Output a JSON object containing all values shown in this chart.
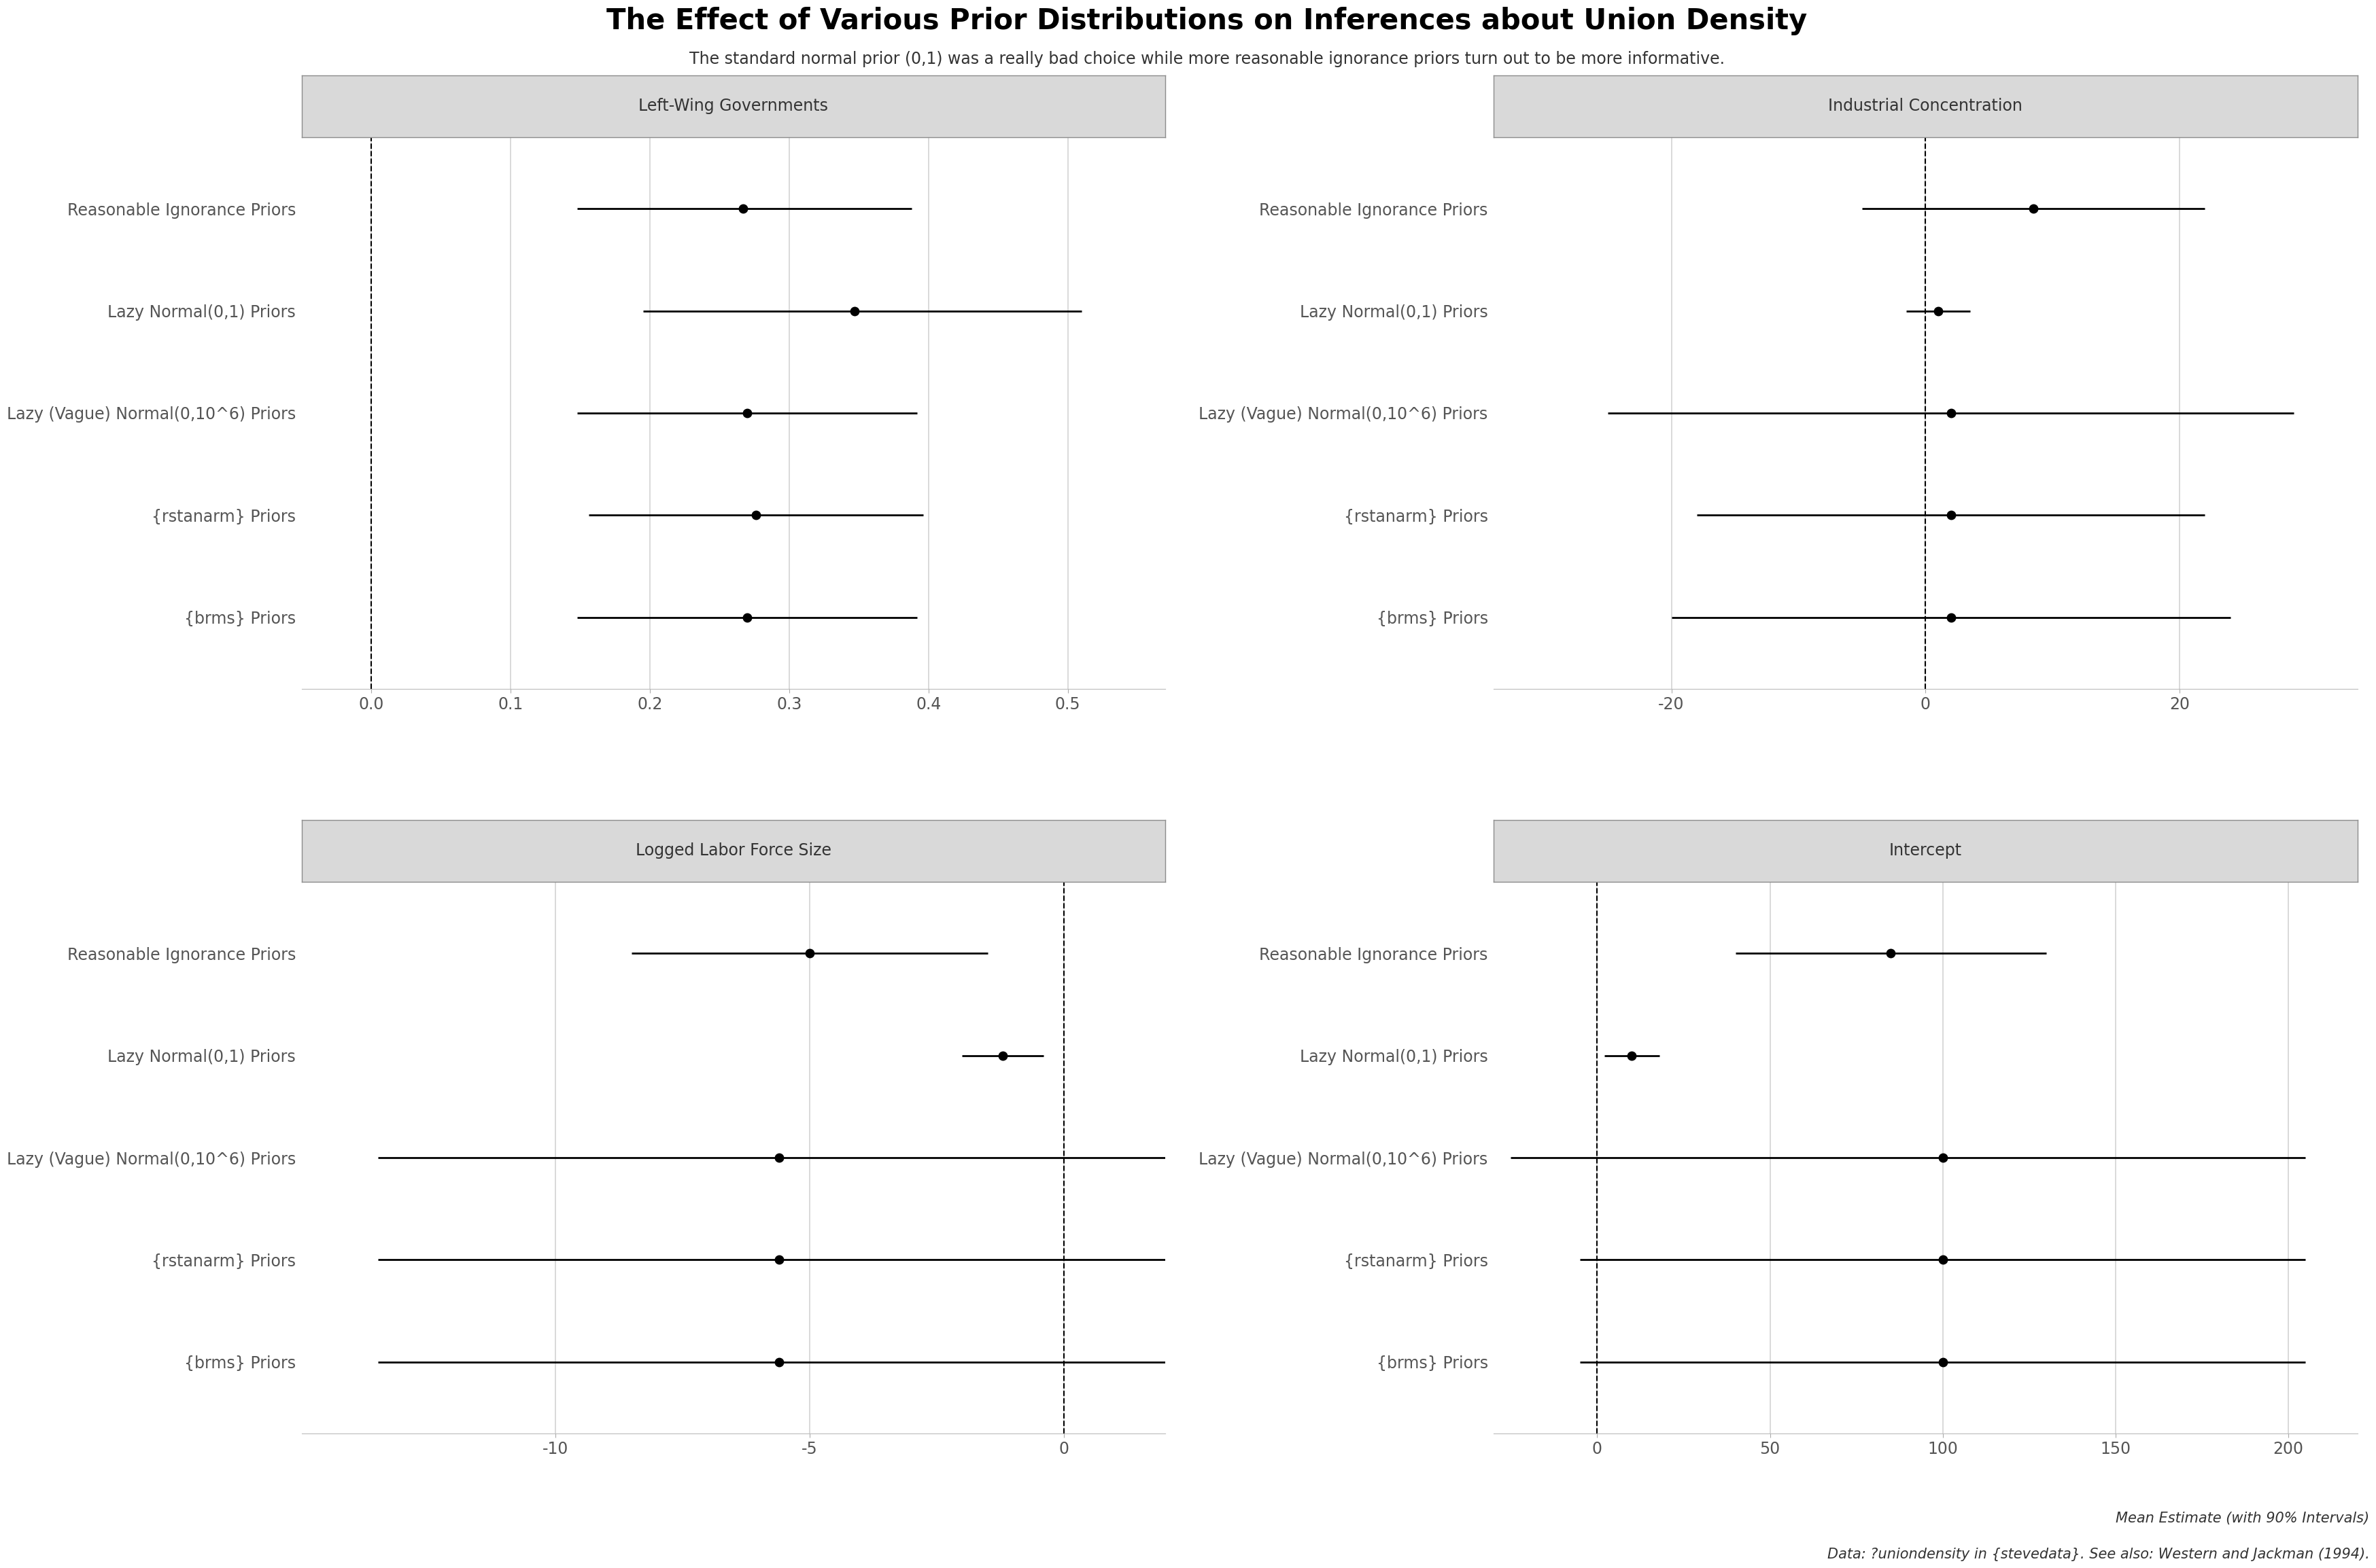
{
  "title": "The Effect of Various Prior Distributions on Inferences about Union Density",
  "subtitle": "The standard normal prior (0,1) was a really bad choice while more reasonable ignorance priors turn out to be more informative.",
  "caption_line1": "Mean Estimate (with 90% Intervals)",
  "caption_line2": "Data: ?uniondensity in {stevedata}. See also: Western and Jackman (1994).",
  "panels": [
    {
      "title": "Left-Wing Governments",
      "row": 0,
      "col": 0,
      "xlim": [
        -0.05,
        0.57
      ],
      "xticks": [
        0.0,
        0.1,
        0.2,
        0.3,
        0.4,
        0.5
      ],
      "xticklabels": [
        "0.0",
        "0.1",
        "0.2",
        "0.3",
        "0.4",
        "0.5"
      ],
      "vline": 0.0,
      "priors": [
        {
          "label": "Reasonable Ignorance Priors",
          "mean": 0.267,
          "lo": 0.148,
          "hi": 0.388
        },
        {
          "label": "Lazy Normal(0,1) Priors",
          "mean": 0.347,
          "lo": 0.195,
          "hi": 0.51
        },
        {
          "label": "Lazy (Vague) Normal(0,10^6) Priors",
          "mean": 0.27,
          "lo": 0.148,
          "hi": 0.392
        },
        {
          "label": "{rstanarm} Priors",
          "mean": 0.276,
          "lo": 0.156,
          "hi": 0.396
        },
        {
          "label": "{brms} Priors",
          "mean": 0.27,
          "lo": 0.148,
          "hi": 0.392
        }
      ]
    },
    {
      "title": "Industrial Concentration",
      "row": 0,
      "col": 1,
      "xlim": [
        -34,
        34
      ],
      "xticks": [
        -20,
        0,
        20
      ],
      "xticklabels": [
        "-20",
        "0",
        "20"
      ],
      "vline": 0.0,
      "priors": [
        {
          "label": "Reasonable Ignorance Priors",
          "mean": 8.5,
          "lo": -5.0,
          "hi": 22.0
        },
        {
          "label": "Lazy Normal(0,1) Priors",
          "mean": 1.0,
          "lo": -1.5,
          "hi": 3.5
        },
        {
          "label": "Lazy (Vague) Normal(0,10^6) Priors",
          "mean": 2.0,
          "lo": -25.0,
          "hi": 29.0
        },
        {
          "label": "{rstanarm} Priors",
          "mean": 2.0,
          "lo": -18.0,
          "hi": 22.0
        },
        {
          "label": "{brms} Priors",
          "mean": 2.0,
          "lo": -20.0,
          "hi": 24.0
        }
      ]
    },
    {
      "title": "Logged Labor Force Size",
      "row": 1,
      "col": 0,
      "xlim": [
        -15,
        2
      ],
      "xticks": [
        -10,
        -5,
        0
      ],
      "xticklabels": [
        "-10",
        "-5",
        "0"
      ],
      "vline": 0.0,
      "priors": [
        {
          "label": "Reasonable Ignorance Priors",
          "mean": -5.0,
          "lo": -8.5,
          "hi": -1.5
        },
        {
          "label": "Lazy Normal(0,1) Priors",
          "mean": -1.2,
          "lo": -2.0,
          "hi": -0.4
        },
        {
          "label": "Lazy (Vague) Normal(0,10^6) Priors",
          "mean": -5.6,
          "lo": -13.5,
          "hi": 2.3
        },
        {
          "label": "{rstanarm} Priors",
          "mean": -5.6,
          "lo": -13.5,
          "hi": 2.3
        },
        {
          "label": "{brms} Priors",
          "mean": -5.6,
          "lo": -13.5,
          "hi": 2.3
        }
      ]
    },
    {
      "title": "Intercept",
      "row": 1,
      "col": 1,
      "xlim": [
        -30,
        220
      ],
      "xticks": [
        0,
        50,
        100,
        150,
        200
      ],
      "xticklabels": [
        "0",
        "50",
        "100",
        "150",
        "200"
      ],
      "vline": 0.0,
      "priors": [
        {
          "label": "Reasonable Ignorance Priors",
          "mean": 85.0,
          "lo": 40.0,
          "hi": 130.0
        },
        {
          "label": "Lazy Normal(0,1) Priors",
          "mean": 10.0,
          "lo": 2.0,
          "hi": 18.0
        },
        {
          "label": "Lazy (Vague) Normal(0,10^6) Priors",
          "mean": 100.0,
          "lo": -25.0,
          "hi": 205.0
        },
        {
          "label": "{rstanarm} Priors",
          "mean": 100.0,
          "lo": -5.0,
          "hi": 205.0
        },
        {
          "label": "{brms} Priors",
          "mean": 100.0,
          "lo": -5.0,
          "hi": 205.0
        }
      ]
    }
  ],
  "background_color": "#ffffff",
  "panel_bg": "#ffffff",
  "strip_bg": "#d9d9d9",
  "strip_edge": "#8c8c8c",
  "grid_color": "#d3d3d3",
  "vline_color": "#000000",
  "dot_color": "#000000",
  "line_color": "#000000",
  "title_fontsize": 30,
  "subtitle_fontsize": 17,
  "strip_fontsize": 17,
  "tick_fontsize": 17,
  "label_fontsize": 17,
  "caption_fontsize": 15
}
